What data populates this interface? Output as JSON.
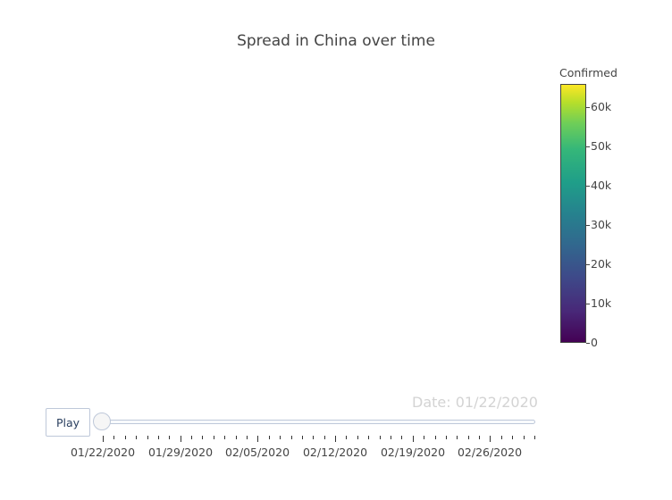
{
  "chart_data": {
    "type": "choropleth",
    "title": "Spread in China over time",
    "colorbar": {
      "title": "Confirmed",
      "range": [
        0,
        66000
      ],
      "tick_values": [
        0,
        10000,
        20000,
        30000,
        40000,
        50000,
        60000
      ],
      "tick_labels": [
        "0",
        "10k",
        "20k",
        "30k",
        "40k",
        "50k",
        "60k"
      ],
      "colorscale": "Viridis"
    }
  },
  "slider": {
    "current_label": "Date: 01/22/2020",
    "current_value": "01/22/2020",
    "step_count": 40,
    "major_labels": [
      "01/22/2020",
      "01/29/2020",
      "02/05/2020",
      "02/12/2020",
      "02/19/2020",
      "02/26/2020"
    ],
    "major_every": 7
  },
  "controls": {
    "play_label": "Play"
  }
}
